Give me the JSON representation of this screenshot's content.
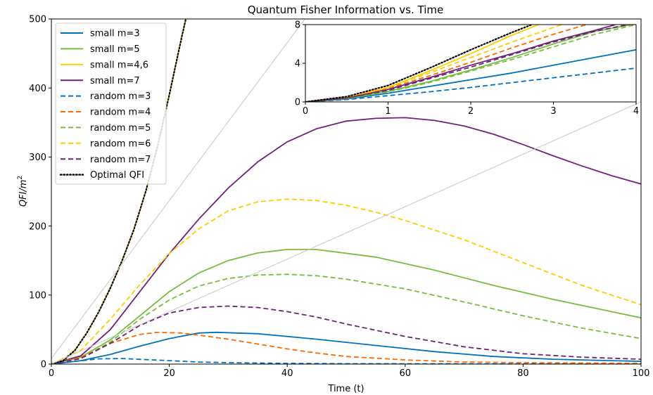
{
  "chart_data": [
    {
      "type": "line",
      "title": "Quantum Fisher Information vs. Time",
      "xlabel": "Time (t)",
      "ylabel": "QFI/m²",
      "ylabel_parts": {
        "base": "QFI/",
        "var": "m",
        "sup": "2"
      },
      "xlim": [
        0,
        100
      ],
      "ylim": [
        0,
        500
      ],
      "xticks": [
        0,
        20,
        40,
        60,
        80,
        100
      ],
      "yticks": [
        0,
        100,
        200,
        300,
        400,
        500
      ],
      "grid": false,
      "legend_position": "upper-left",
      "series": [
        {
          "name": "small m=3",
          "color": "#0072BD",
          "style": "solid",
          "x": [
            0,
            5,
            10,
            15,
            20,
            25,
            28,
            35,
            45,
            55,
            65,
            75,
            85,
            100
          ],
          "y": [
            0,
            5,
            14,
            26,
            37,
            45,
            46,
            44,
            36,
            27,
            18,
            11,
            7,
            4
          ]
        },
        {
          "name": "small m=5",
          "color": "#77BD3C",
          "style": "solid",
          "x": [
            0,
            5,
            10,
            15,
            20,
            25,
            30,
            35,
            40,
            45,
            55,
            65,
            75,
            85,
            100
          ],
          "y": [
            0,
            10,
            35,
            70,
            105,
            132,
            150,
            161,
            166,
            166,
            155,
            136,
            114,
            94,
            67
          ]
        },
        {
          "name": "small m=4,6",
          "color": "#FFCC00",
          "style": "solid",
          "x": [
            0,
            2,
            4,
            6,
            8,
            10,
            12,
            14,
            16,
            18,
            20,
            22,
            22.8
          ],
          "y": [
            0,
            5,
            20,
            45,
            75,
            110,
            150,
            195,
            250,
            315,
            390,
            470,
            500
          ]
        },
        {
          "name": "small m=7",
          "color": "#6E2379",
          "style": "solid",
          "x": [
            0,
            5,
            10,
            15,
            20,
            25,
            30,
            35,
            40,
            45,
            50,
            55,
            60,
            65,
            70,
            75,
            80,
            85,
            90,
            95,
            100
          ],
          "y": [
            0,
            12,
            50,
            105,
            160,
            210,
            255,
            293,
            322,
            341,
            352,
            356,
            357,
            353,
            345,
            333,
            318,
            302,
            287,
            273,
            261
          ]
        },
        {
          "name": "random m=3",
          "color": "#0072BD",
          "style": "dashed",
          "x": [
            0,
            4,
            8,
            12,
            16,
            20,
            25,
            30,
            40,
            50,
            100
          ],
          "y": [
            0,
            4,
            7.5,
            8,
            6.5,
            5,
            3,
            2,
            1,
            0.5,
            0
          ]
        },
        {
          "name": "random m=4",
          "color": "#FF6A00",
          "style": "dashed",
          "x": [
            0,
            5,
            10,
            15,
            18,
            22,
            25,
            30,
            35,
            40,
            45,
            50,
            60,
            70,
            80,
            100
          ],
          "y": [
            0,
            10,
            30,
            43,
            46,
            45,
            42,
            36,
            29,
            22,
            16,
            11,
            6,
            3,
            2,
            1
          ]
        },
        {
          "name": "random m=5",
          "color": "#77BD3C",
          "style": "dashed",
          "x": [
            0,
            5,
            10,
            15,
            20,
            25,
            30,
            35,
            40,
            45,
            50,
            60,
            70,
            80,
            90,
            100
          ],
          "y": [
            0,
            8,
            32,
            65,
            93,
            113,
            124,
            129,
            130,
            128,
            123,
            109,
            90,
            70,
            52,
            37
          ]
        },
        {
          "name": "random m=6",
          "color": "#FFCC00",
          "style": "dashed",
          "x": [
            0,
            5,
            10,
            15,
            20,
            25,
            30,
            35,
            40,
            45,
            50,
            55,
            60,
            70,
            80,
            90,
            100
          ],
          "y": [
            0,
            20,
            65,
            115,
            160,
            196,
            222,
            235,
            239,
            237,
            230,
            220,
            208,
            180,
            147,
            114,
            86
          ]
        },
        {
          "name": "random m=7",
          "color": "#6E2379",
          "style": "dashed",
          "x": [
            0,
            5,
            10,
            15,
            20,
            25,
            30,
            35,
            40,
            45,
            50,
            60,
            70,
            80,
            90,
            100
          ],
          "y": [
            0,
            8,
            30,
            56,
            74,
            82,
            84,
            82,
            76,
            68,
            58,
            40,
            25,
            15,
            10,
            7
          ]
        },
        {
          "name": "Optimal QFI",
          "color": "#000000",
          "style": "dotted",
          "x": [
            0,
            2,
            4,
            6,
            8,
            10,
            12,
            14,
            16,
            18,
            20,
            22,
            22.8
          ],
          "y": [
            0,
            5,
            20,
            45,
            75,
            110,
            150,
            195,
            250,
            315,
            390,
            470,
            500
          ]
        },
        {
          "name": "",
          "color": "#C8C8C8",
          "style": "solid",
          "x": [
            0,
            43
          ],
          "y": [
            8,
            500
          ]
        },
        {
          "name": "",
          "color": "#C8C8C8",
          "style": "solid",
          "x": [
            0,
            100
          ],
          "y": [
            0,
            380
          ]
        }
      ]
    },
    {
      "type": "line",
      "title": "",
      "xlabel": "",
      "ylabel": "",
      "xlim": [
        0,
        4
      ],
      "ylim": [
        0,
        8
      ],
      "xticks": [
        0,
        1,
        2,
        3,
        4
      ],
      "yticks": [
        0,
        4,
        8
      ],
      "grid": false,
      "inset": "top-right",
      "series": [
        {
          "name": "small m=3",
          "color": "#0072BD",
          "style": "solid",
          "x": [
            0,
            0.5,
            1,
            1.5,
            2,
            2.5,
            3,
            3.5,
            4
          ],
          "y": [
            0,
            0.3,
            0.9,
            1.6,
            2.3,
            3.0,
            3.8,
            4.6,
            5.4
          ]
        },
        {
          "name": "small m=5",
          "color": "#77BD3C",
          "style": "solid",
          "x": [
            0,
            0.5,
            1,
            1.5,
            2,
            2.5,
            3,
            3.5,
            3.95
          ],
          "y": [
            0,
            0.35,
            1.1,
            2.1,
            3.3,
            4.6,
            6.0,
            7.3,
            8.0
          ]
        },
        {
          "name": "small m=4,6",
          "color": "#FFCC00",
          "style": "solid",
          "x": [
            0,
            0.5,
            1,
            1.5,
            2,
            2.5,
            2.82
          ],
          "y": [
            0,
            0.5,
            1.5,
            3.2,
            5.0,
            6.9,
            8.0
          ]
        },
        {
          "name": "small m=7",
          "color": "#6E2379",
          "style": "solid",
          "x": [
            0,
            0.5,
            1,
            1.5,
            2,
            2.5,
            3,
            3.5,
            3.75
          ],
          "y": [
            0,
            0.4,
            1.3,
            2.5,
            3.8,
            5.0,
            6.3,
            7.4,
            8.0
          ]
        },
        {
          "name": "random m=3",
          "color": "#0072BD",
          "style": "dashed",
          "x": [
            0,
            0.5,
            1,
            1.5,
            2,
            2.5,
            3,
            3.5,
            4
          ],
          "y": [
            0,
            0.25,
            0.65,
            1.05,
            1.5,
            2.0,
            2.5,
            3.0,
            3.5
          ]
        },
        {
          "name": "random m=4",
          "color": "#FF6A00",
          "style": "dashed",
          "x": [
            0,
            0.5,
            1,
            1.5,
            2,
            2.5,
            3,
            3.4
          ],
          "y": [
            0,
            0.45,
            1.4,
            2.7,
            4.1,
            5.6,
            7.0,
            8.0
          ]
        },
        {
          "name": "random m=5",
          "color": "#77BD3C",
          "style": "dashed",
          "x": [
            0,
            0.5,
            1,
            1.5,
            2,
            2.5,
            3,
            3.5,
            4
          ],
          "y": [
            0,
            0.35,
            1.05,
            2.0,
            3.2,
            4.4,
            5.7,
            7.0,
            8.0
          ]
        },
        {
          "name": "random m=6",
          "color": "#FFCC00",
          "style": "dashed",
          "x": [
            0,
            0.5,
            1,
            1.5,
            2,
            2.5,
            3,
            3.1
          ],
          "y": [
            0,
            0.5,
            1.5,
            3.0,
            4.6,
            6.2,
            7.7,
            8.0
          ]
        },
        {
          "name": "random m=7",
          "color": "#6E2379",
          "style": "dashed",
          "x": [
            0,
            0.5,
            1,
            1.5,
            2,
            2.5,
            3,
            3.5,
            3.9
          ],
          "y": [
            0,
            0.4,
            1.2,
            2.4,
            3.6,
            4.9,
            6.2,
            7.3,
            8.0
          ]
        },
        {
          "name": "Optimal QFI",
          "color": "#000000",
          "style": "dotted",
          "x": [
            0,
            0.5,
            1,
            1.5,
            2,
            2.5,
            2.74
          ],
          "y": [
            0,
            0.55,
            1.7,
            3.5,
            5.4,
            7.2,
            8.0
          ]
        }
      ]
    }
  ]
}
